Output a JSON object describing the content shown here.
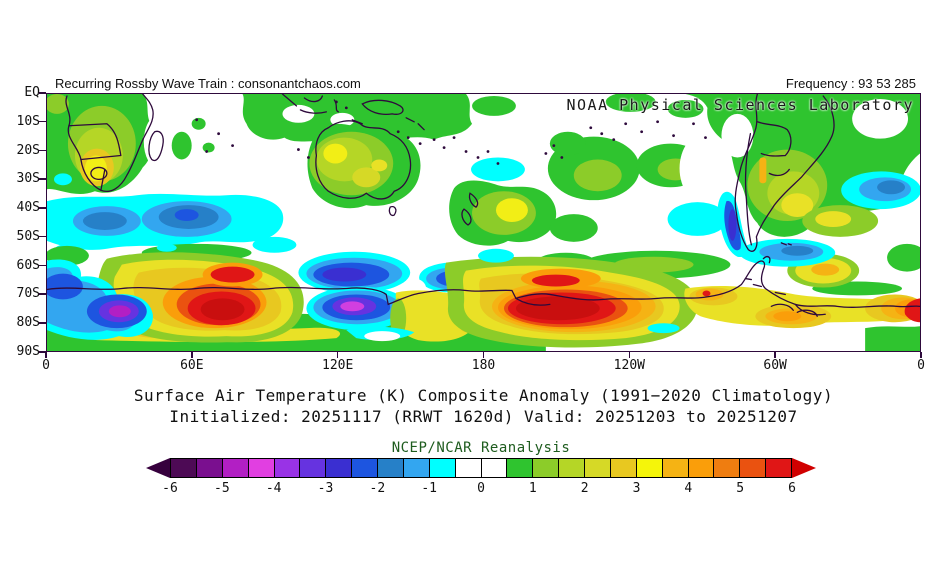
{
  "header": {
    "left_text": "Recurring Rossby Wave Train : consonantchaos.com",
    "right_text": "Frequency : 93 53 285",
    "org_label": "NOAA Physical Sciences Laboratory"
  },
  "titles": {
    "line1": "Surface Air Temperature (K) Composite Anomaly (1991−2020 Climatology)",
    "line2": "Initialized: 20251117 (RRWT 1620d) Valid: 20251203 to 20251207"
  },
  "map": {
    "y_axis_ticks": [
      "EQ",
      "10S",
      "20S",
      "30S",
      "40S",
      "50S",
      "60S",
      "70S",
      "80S",
      "90S"
    ],
    "x_axis_ticks": [
      "0",
      "60E",
      "120E",
      "180",
      "120W",
      "60W",
      "0"
    ],
    "border_color": "#2e0a3c",
    "coastline_color": "#2e0a3c"
  },
  "colorbar": {
    "label": "NCEP/NCAR Reanalysis",
    "label_color": "#1e5c1e",
    "tick_labels": [
      "-6",
      "-5",
      "-4",
      "-3",
      "-2",
      "-1",
      "0",
      "1",
      "2",
      "3",
      "4",
      "5",
      "6"
    ],
    "arrow_left_color": "#36003d",
    "arrow_right_color": "#d00000",
    "cell_colors": [
      "#4d0a55",
      "#7a0f8f",
      "#b21fc4",
      "#e13fe1",
      "#9933e6",
      "#6633e0",
      "#3a2fd1",
      "#1d55e0",
      "#2680c8",
      "#33a6f0",
      "#00ffff",
      "#ffffff",
      "#ffffff",
      "#2fc42f",
      "#8ccc29",
      "#b5d626",
      "#d6d926",
      "#e8c820",
      "#f5f50a",
      "#f5b314",
      "#fa9e0a",
      "#ef7d10",
      "#ea5210",
      "#e01616"
    ]
  },
  "chart_data": {
    "type": "heatmap",
    "subtype": "filled-contour-anomaly-map",
    "variable": "Surface Air Temperature (K) Composite Anomaly",
    "climatology": "1991-2020",
    "initialized": "20251117",
    "composite_id": "RRWT 1620d",
    "valid_period": [
      "20251203",
      "20251207"
    ],
    "dataset": "NCEP/NCAR Reanalysis",
    "frequency_counts": [
      93,
      53,
      285
    ],
    "lon_ticks_deg": [
      0,
      60,
      120,
      180,
      240,
      300,
      360
    ],
    "lat_ticks": [
      "EQ",
      "10S",
      "20S",
      "30S",
      "40S",
      "50S",
      "60S",
      "70S",
      "80S",
      "90S"
    ],
    "contour_levels_K": [
      -6,
      -5.5,
      -5,
      -4.5,
      -4,
      -3.5,
      -3,
      -2.5,
      -2,
      -1.5,
      -1,
      -0.5,
      0,
      0.5,
      1,
      1.5,
      2,
      2.5,
      3,
      3.5,
      4,
      4.5,
      5,
      5.5,
      6
    ],
    "anomaly_features": [
      {
        "region": "southern Africa",
        "extent": "5E-50E, 0-35S",
        "sign": "warm",
        "peak_K": 3
      },
      {
        "region": "south Indian Ocean band",
        "extent": "0-95E, 38-55S",
        "sign": "cold",
        "peak_K": -2
      },
      {
        "region": "Australia",
        "extent": "110E-155E, 10-40S",
        "sign": "warm",
        "peak_K": 3
      },
      {
        "region": "New Zealand / Tasman Sea",
        "extent": "160E-185E, 30-50S",
        "sign": "warm",
        "peak_K": 3
      },
      {
        "region": "Antarctic coast Atlantic sector",
        "extent": "0-25E, 62-86S",
        "sign": "cold",
        "peak_K": -5
      },
      {
        "region": "Antarctic Indian sector",
        "extent": "25E-100E, 57-87S",
        "sign": "warm",
        "peak_K": 6
      },
      {
        "region": "Wilkes Land / Adelie coast",
        "extent": "105E-175E, 57-80S",
        "sign": "cold",
        "peak_K": -5
      },
      {
        "region": "Ross Sea - Amundsen Sea",
        "extent": "170E-115W, 60-88S",
        "sign": "warm",
        "peak_K": 6
      },
      {
        "region": "Patagonia coast",
        "extent": "80W-70W, 38-56S",
        "sign": "cold",
        "peak_K": -4
      },
      {
        "region": "Antarctic Peninsula / Weddell sector",
        "extent": "100W-0, 62-80S",
        "sign": "warm",
        "peak_K": 4
      },
      {
        "region": "subtropical South Atlantic",
        "extent": "35W-0, 28-40S",
        "sign": "cold",
        "peak_K": -2
      },
      {
        "region": "southeast Pacific",
        "extent": "105W-82W, 35-50S",
        "sign": "cold",
        "peak_K": -1
      }
    ]
  }
}
